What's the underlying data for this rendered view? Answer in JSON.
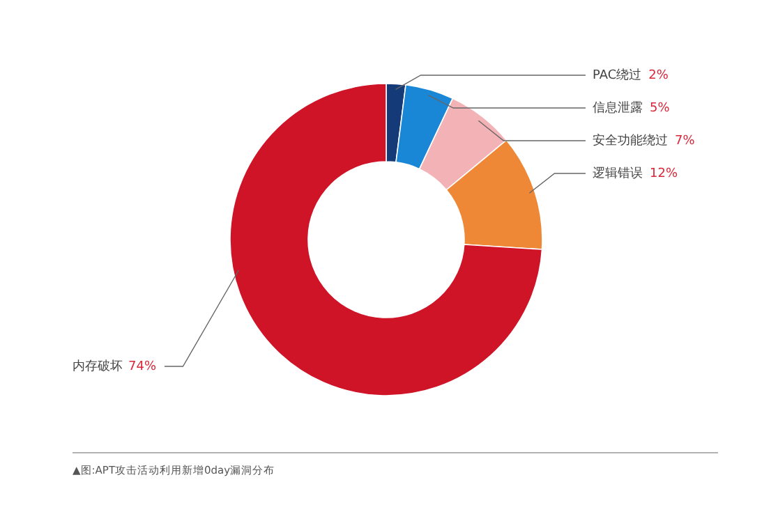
{
  "chart_data": {
    "type": "donut",
    "categories": [
      "PAC绕过",
      "信息泄露",
      "安全功能绕过",
      "逻辑错误",
      "内存破坏"
    ],
    "values": [
      2,
      5,
      7,
      12,
      74
    ],
    "colors": [
      "#143a78",
      "#1a86d6",
      "#f3b2b6",
      "#ee8836",
      "#cf1428"
    ],
    "value_labels": [
      "2%",
      "5%",
      "7%",
      "12%",
      "74%"
    ],
    "annotations": [
      "▲图:APT攻击活动利用新增0day漏洞分布"
    ]
  }
}
